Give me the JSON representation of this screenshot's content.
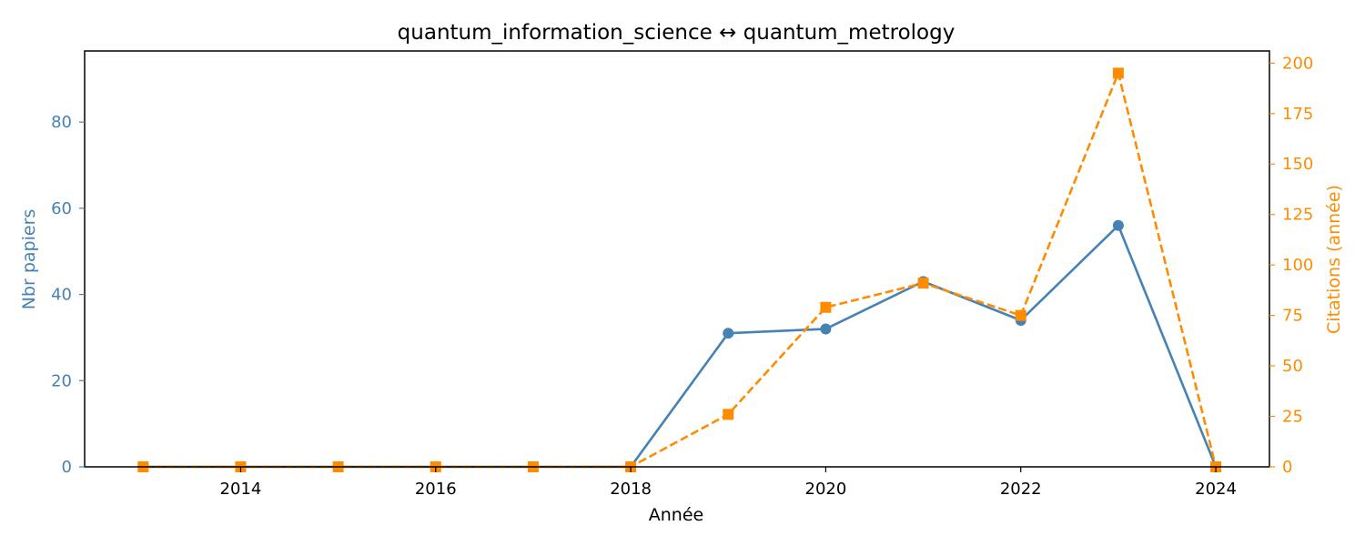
{
  "chart_data": {
    "type": "line",
    "title": "quantum_information_science  ↔  quantum_metrology",
    "xlabel": "Année",
    "ylabel_left": "Nbr papiers",
    "ylabel_right": "Citations (année)",
    "x": [
      2013,
      2014,
      2015,
      2016,
      2017,
      2018,
      2019,
      2020,
      2021,
      2022,
      2023,
      2024
    ],
    "x_ticks": [
      "2014",
      "2016",
      "2018",
      "2020",
      "2022",
      "2024"
    ],
    "xlim": [
      2012.4,
      2024.55
    ],
    "ylim_left": [
      0,
      96.5
    ],
    "ylim_right": [
      0,
      206
    ],
    "y_ticks_left": [
      "0",
      "20",
      "40",
      "60",
      "80"
    ],
    "y_ticks_right": [
      "0",
      "25",
      "50",
      "75",
      "100",
      "125",
      "150",
      "175",
      "200"
    ],
    "grid": false,
    "series": [
      {
        "axis": "left",
        "color": "#4682b4",
        "marker": "circle",
        "linestyle": "solid",
        "values": [
          0,
          0,
          0,
          0,
          0,
          0,
          31,
          32,
          43,
          34,
          56,
          0
        ]
      },
      {
        "axis": "right",
        "color": "#ff8c00",
        "marker": "square",
        "linestyle": "dashed",
        "values": [
          0,
          0,
          0,
          0,
          0,
          0,
          26,
          79,
          91,
          75,
          195,
          0
        ]
      }
    ]
  }
}
